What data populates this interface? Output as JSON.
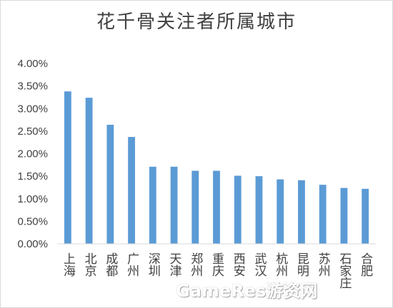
{
  "chart_data": {
    "type": "bar",
    "title": "花千骨关注者所属城市",
    "categories": [
      "上海",
      "北京",
      "成都",
      "广州",
      "深圳",
      "天津",
      "郑州",
      "重庆",
      "西安",
      "武汉",
      "杭州",
      "昆明",
      "苏州",
      "石家庄",
      "合肥"
    ],
    "values": [
      3.38,
      3.24,
      2.64,
      2.37,
      1.71,
      1.71,
      1.62,
      1.62,
      1.51,
      1.5,
      1.43,
      1.41,
      1.31,
      1.24,
      1.22
    ],
    "ylim": [
      0,
      4
    ],
    "yticks": [
      "0.00%",
      "0.50%",
      "1.00%",
      "1.50%",
      "2.00%",
      "2.50%",
      "3.00%",
      "3.50%",
      "4.00%"
    ],
    "grid": false,
    "legend": "none",
    "bar_color": "#5b9bd5"
  },
  "watermark": "GameRes游资网"
}
